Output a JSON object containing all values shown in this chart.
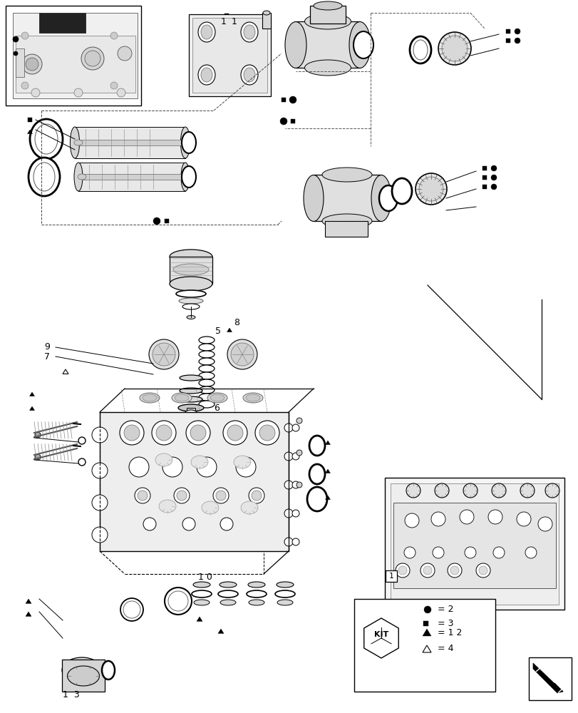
{
  "bg_color": "#ffffff",
  "line_color": "#000000",
  "page_width": 8.12,
  "page_height": 10.0
}
